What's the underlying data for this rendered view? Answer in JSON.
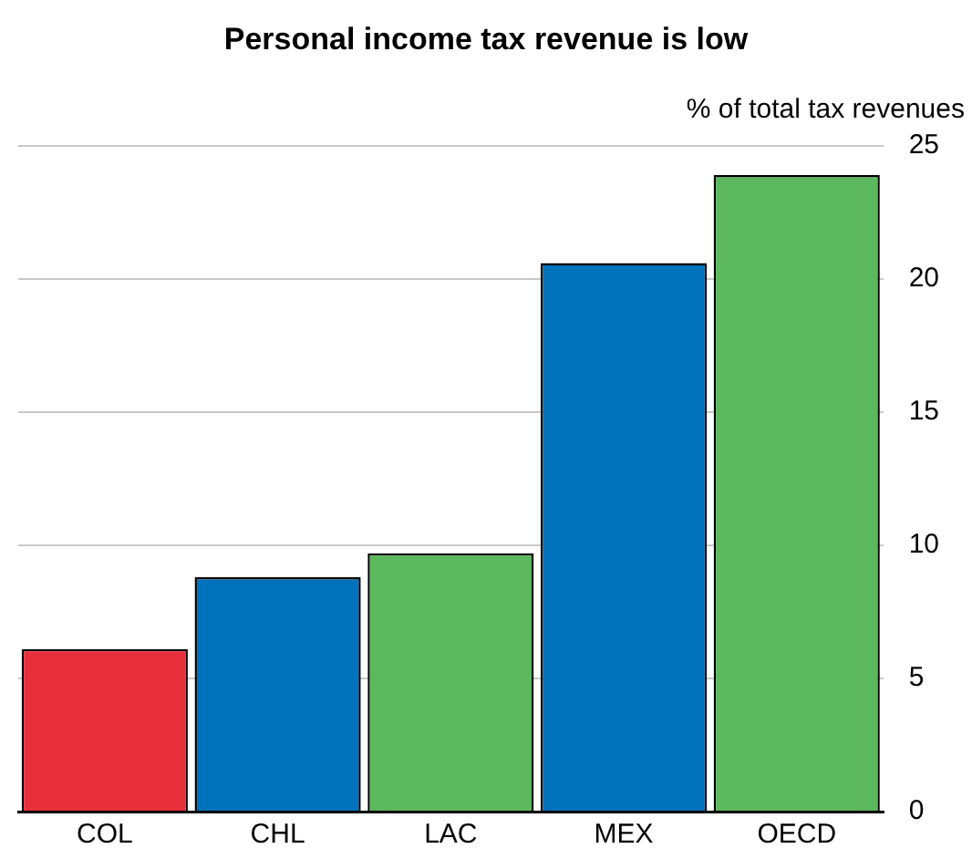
{
  "chart_data": {
    "type": "bar",
    "title": "Personal income tax revenue is low",
    "ylabel": "% of total tax revenues",
    "categories": [
      "COL",
      "CHL",
      "LAC",
      "MEX",
      "OECD"
    ],
    "values": [
      6.1,
      8.8,
      9.7,
      20.6,
      23.9
    ],
    "colors": [
      "#e8303a",
      "#0072bc",
      "#5cb85c",
      "#0072bc",
      "#5cb85c"
    ],
    "ylim": [
      0,
      25
    ],
    "yticks": [
      0,
      5,
      10,
      15,
      20,
      25
    ],
    "grid": "y",
    "legend": false
  }
}
